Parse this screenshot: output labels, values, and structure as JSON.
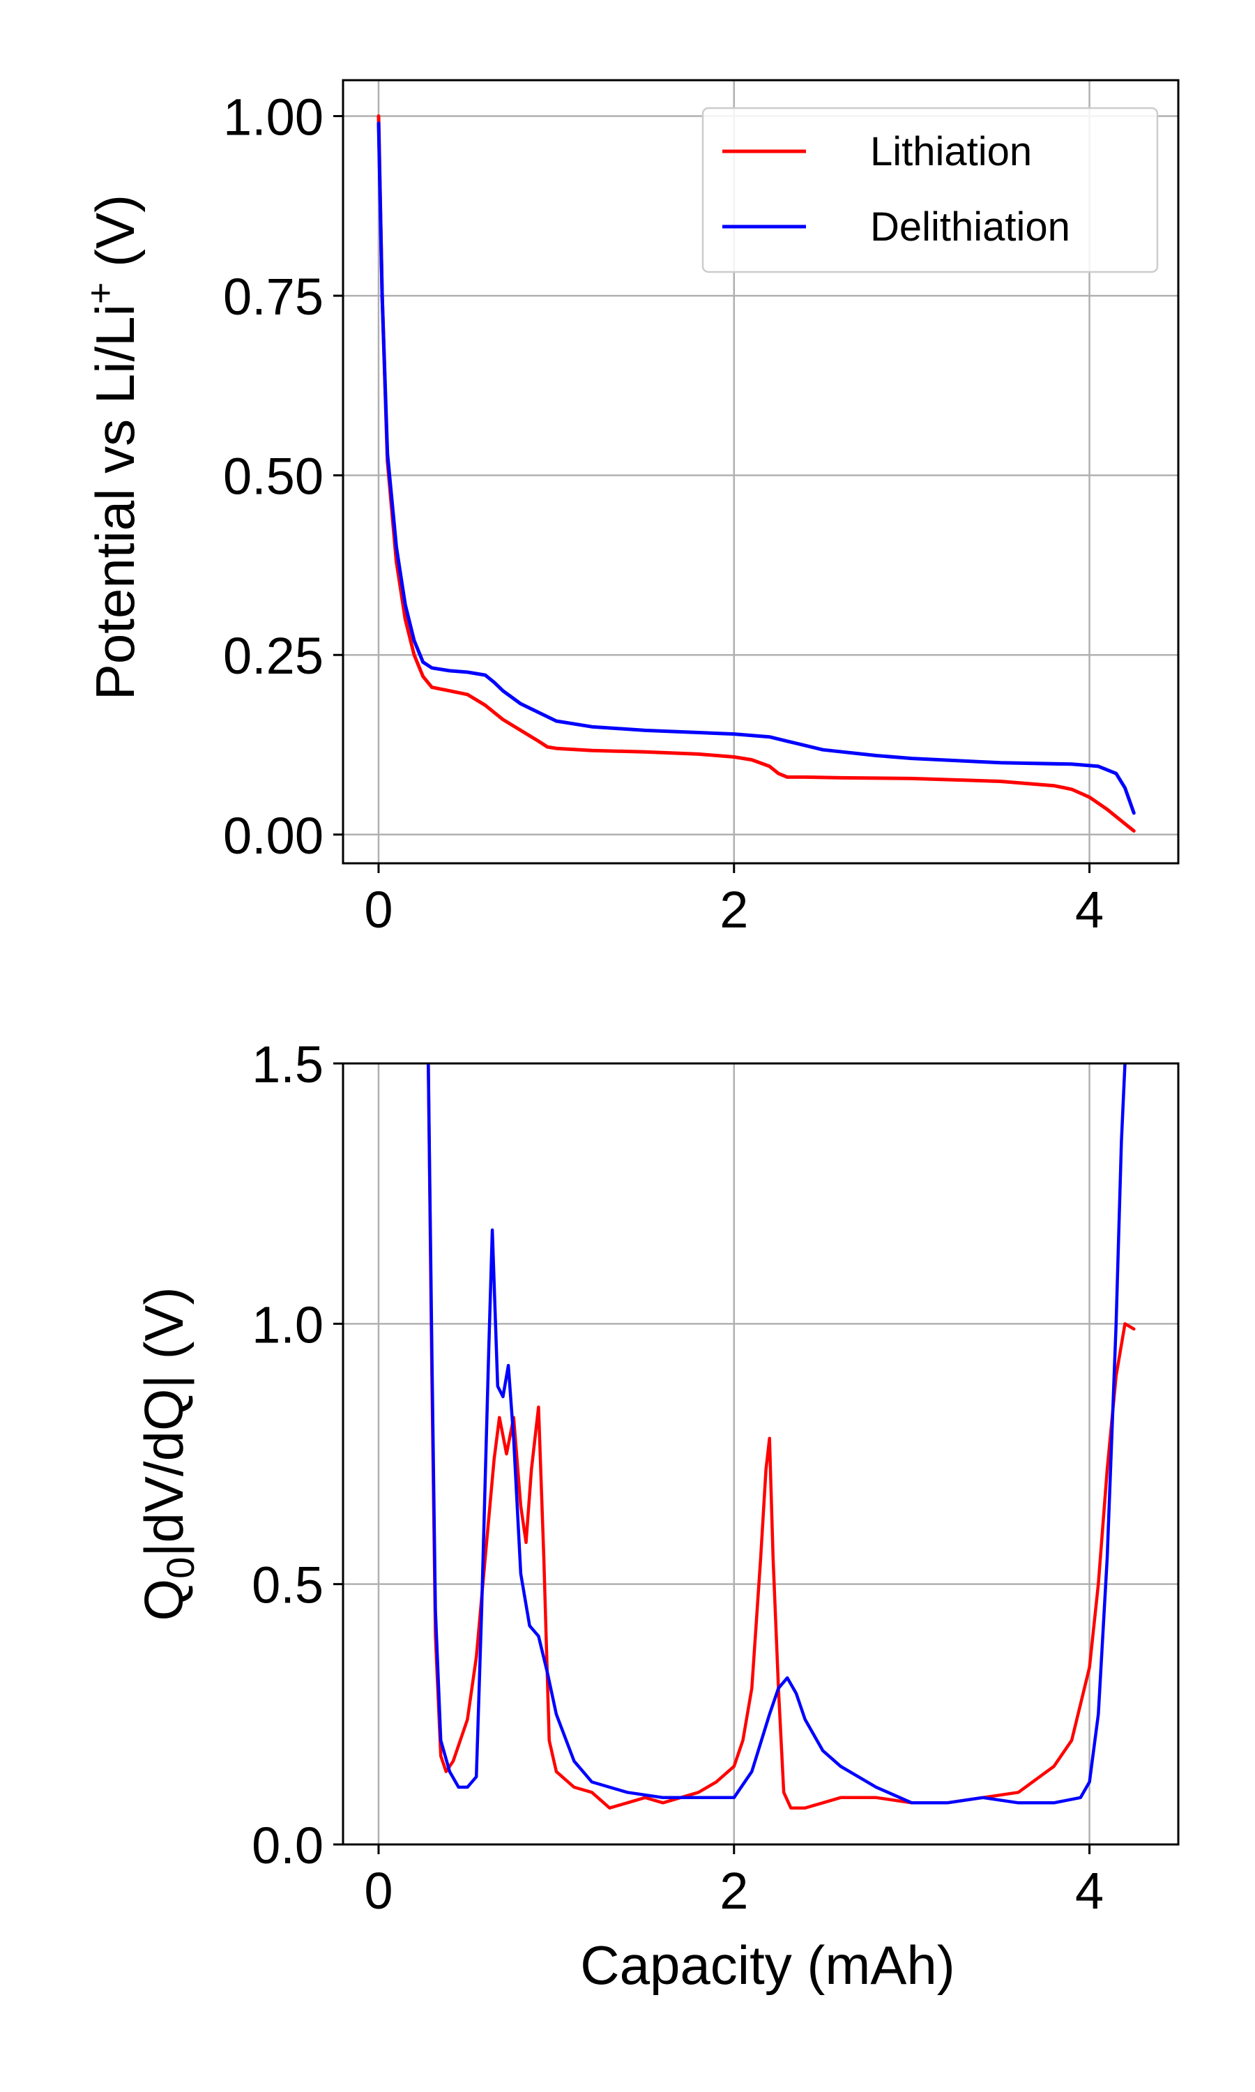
{
  "chart_data": [
    {
      "type": "line",
      "ylabel": "Potential vs Li/Li",
      "ylabel_sup": "+",
      "ylabel_unit": " (V)",
      "xlabel": "",
      "xlim": [
        -0.2,
        4.5
      ],
      "ylim": [
        -0.04,
        1.05
      ],
      "xticks": [
        0,
        2,
        4
      ],
      "xtick_labels": [
        "0",
        "2",
        "4"
      ],
      "yticks": [
        0,
        0.25,
        0.5,
        0.75,
        1.0
      ],
      "ytick_labels": [
        "0.00",
        "0.25",
        "0.50",
        "0.75",
        "1.00"
      ],
      "grid": true,
      "legend": {
        "placement": "top-right",
        "entries": [
          "Lithiation",
          "Delithiation"
        ]
      },
      "series": [
        {
          "name": "Lithiation",
          "color": "#ff0000",
          "x": [
            0,
            0.02,
            0.05,
            0.1,
            0.15,
            0.2,
            0.25,
            0.3,
            0.4,
            0.5,
            0.6,
            0.7,
            0.8,
            0.9,
            0.95,
            1.0,
            1.2,
            1.5,
            1.8,
            2.0,
            2.1,
            2.2,
            2.25,
            2.3,
            2.4,
            2.6,
            3.0,
            3.5,
            3.8,
            3.9,
            4.0,
            4.1,
            4.2,
            4.25
          ],
          "y": [
            1.0,
            0.75,
            0.52,
            0.38,
            0.3,
            0.25,
            0.22,
            0.205,
            0.2,
            0.195,
            0.18,
            0.16,
            0.145,
            0.13,
            0.122,
            0.12,
            0.117,
            0.115,
            0.112,
            0.108,
            0.104,
            0.095,
            0.085,
            0.08,
            0.08,
            0.079,
            0.078,
            0.074,
            0.068,
            0.063,
            0.052,
            0.035,
            0.015,
            0.005
          ]
        },
        {
          "name": "Delithiation",
          "color": "#0000ff",
          "x": [
            0,
            0.02,
            0.05,
            0.1,
            0.15,
            0.2,
            0.25,
            0.3,
            0.4,
            0.5,
            0.6,
            0.65,
            0.7,
            0.8,
            0.9,
            1.0,
            1.2,
            1.5,
            1.8,
            2.0,
            2.2,
            2.3,
            2.5,
            2.8,
            3.0,
            3.5,
            3.9,
            4.05,
            4.15,
            4.2,
            4.25
          ],
          "y": [
            0.99,
            0.75,
            0.53,
            0.4,
            0.32,
            0.27,
            0.24,
            0.232,
            0.228,
            0.226,
            0.222,
            0.212,
            0.2,
            0.182,
            0.17,
            0.158,
            0.15,
            0.145,
            0.142,
            0.14,
            0.136,
            0.13,
            0.118,
            0.11,
            0.106,
            0.1,
            0.098,
            0.095,
            0.085,
            0.065,
            0.03
          ]
        }
      ]
    },
    {
      "type": "line",
      "ylabel": "Q",
      "ylabel_sub": "0",
      "ylabel_rest": "|dV/dQ| (V)",
      "xlabel": "Capacity (mAh)",
      "xlim": [
        -0.2,
        4.5
      ],
      "ylim": [
        0,
        1.5
      ],
      "xticks": [
        0,
        2,
        4
      ],
      "xtick_labels": [
        "0",
        "2",
        "4"
      ],
      "yticks": [
        0,
        0.5,
        1.0,
        1.5
      ],
      "ytick_labels": [
        "0.0",
        "0.5",
        "1.0",
        "1.5"
      ],
      "grid": true,
      "series": [
        {
          "name": "Lithiation",
          "color": "#ff0000",
          "x": [
            0.28,
            0.3,
            0.32,
            0.35,
            0.38,
            0.42,
            0.5,
            0.55,
            0.6,
            0.65,
            0.68,
            0.72,
            0.76,
            0.8,
            0.83,
            0.86,
            0.9,
            0.93,
            0.96,
            1.0,
            1.1,
            1.2,
            1.3,
            1.4,
            1.5,
            1.6,
            1.7,
            1.8,
            1.9,
            2.0,
            2.05,
            2.1,
            2.15,
            2.18,
            2.2,
            2.22,
            2.25,
            2.28,
            2.32,
            2.4,
            2.5,
            2.6,
            2.8,
            3.0,
            3.2,
            3.4,
            3.6,
            3.8,
            3.9,
            4.0,
            4.05,
            4.1,
            4.15,
            4.2,
            4.25
          ],
          "y": [
            1.5,
            0.9,
            0.4,
            0.17,
            0.14,
            0.16,
            0.24,
            0.36,
            0.55,
            0.74,
            0.82,
            0.75,
            0.82,
            0.65,
            0.58,
            0.72,
            0.84,
            0.55,
            0.2,
            0.14,
            0.11,
            0.1,
            0.07,
            0.08,
            0.09,
            0.08,
            0.09,
            0.1,
            0.12,
            0.15,
            0.2,
            0.3,
            0.55,
            0.72,
            0.78,
            0.55,
            0.3,
            0.1,
            0.07,
            0.07,
            0.08,
            0.09,
            0.09,
            0.08,
            0.08,
            0.09,
            0.1,
            0.15,
            0.2,
            0.34,
            0.5,
            0.72,
            0.9,
            1.0,
            0.99
          ]
        },
        {
          "name": "Delithiation",
          "color": "#0000ff",
          "x": [
            0.28,
            0.3,
            0.32,
            0.35,
            0.4,
            0.45,
            0.5,
            0.55,
            0.58,
            0.62,
            0.64,
            0.67,
            0.7,
            0.73,
            0.76,
            0.8,
            0.85,
            0.9,
            0.95,
            1.0,
            1.1,
            1.2,
            1.3,
            1.4,
            1.6,
            1.8,
            2.0,
            2.1,
            2.2,
            2.25,
            2.3,
            2.35,
            2.4,
            2.5,
            2.6,
            2.8,
            3.0,
            3.2,
            3.4,
            3.6,
            3.8,
            3.95,
            4.0,
            4.05,
            4.1,
            4.15,
            4.18,
            4.2
          ],
          "y": [
            1.5,
            0.95,
            0.45,
            0.2,
            0.14,
            0.11,
            0.11,
            0.13,
            0.45,
            0.95,
            1.18,
            0.88,
            0.86,
            0.92,
            0.78,
            0.52,
            0.42,
            0.4,
            0.33,
            0.25,
            0.16,
            0.12,
            0.11,
            0.1,
            0.09,
            0.09,
            0.09,
            0.14,
            0.25,
            0.3,
            0.32,
            0.29,
            0.24,
            0.18,
            0.15,
            0.11,
            0.08,
            0.08,
            0.09,
            0.08,
            0.08,
            0.09,
            0.12,
            0.25,
            0.55,
            1.0,
            1.35,
            1.5
          ]
        }
      ]
    }
  ]
}
